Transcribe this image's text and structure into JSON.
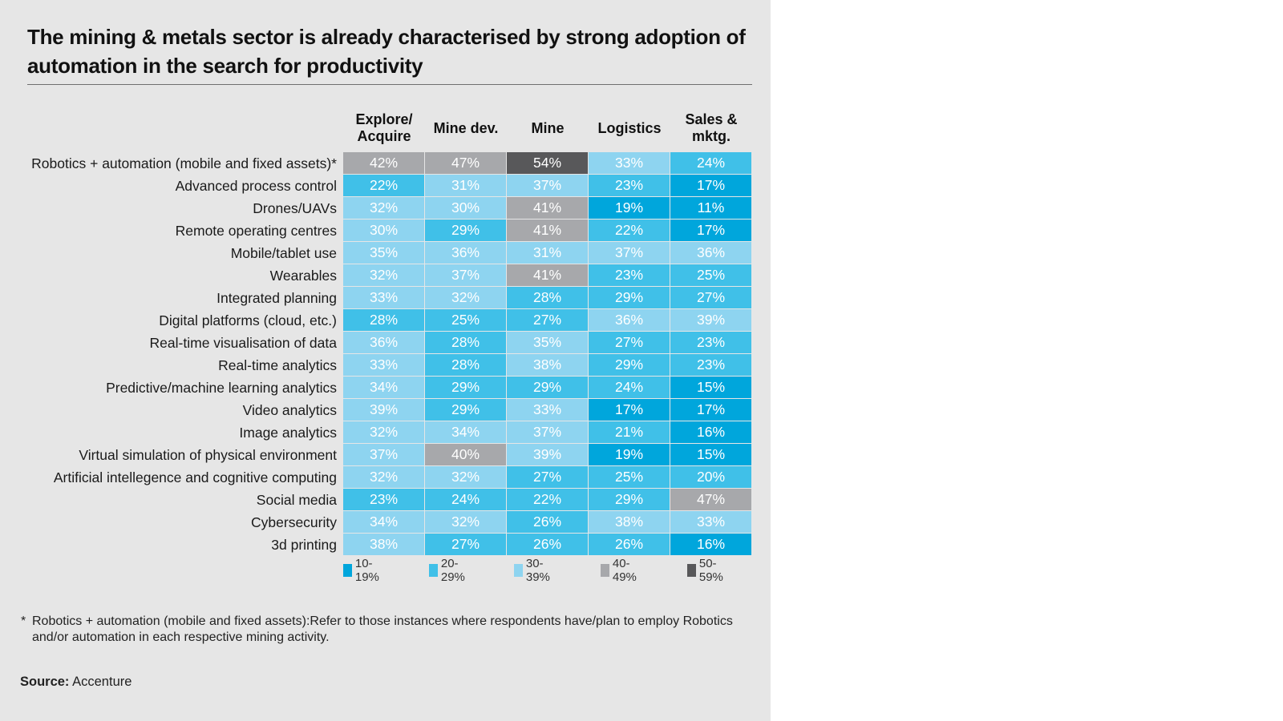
{
  "title": "The mining & metals sector is already characterised by strong adoption of automation in the search for productivity",
  "footnote": {
    "marker": "*",
    "text": "Robotics + automation (mobile and fixed assets):Refer to those instances where respondents have/plan to employ Robotics and/or automation in each respective mining activity."
  },
  "source": {
    "label": "Source:",
    "value": "Accenture"
  },
  "colors": {
    "background_panel": "#e6e6e6",
    "band_10_19": "#00a6dc",
    "band_20_29": "#40c0e8",
    "band_30_39": "#8ed4f0",
    "band_40_49": "#a7a8ab",
    "band_50_59": "#58585a"
  },
  "chart_data": {
    "type": "heatmap",
    "title": "The mining & metals sector is already characterised by strong adoption of automation in the search for productivity",
    "columns": [
      "Explore/\nAcquire",
      "Mine dev.",
      "Mine",
      "Logistics",
      "Sales &\nmktg."
    ],
    "rows": [
      "Robotics + automation (mobile and fixed assets)*",
      "Advanced process control",
      "Drones/UAVs",
      "Remote operating centres",
      "Mobile/tablet use",
      "Wearables",
      "Integrated planning",
      "Digital platforms (cloud, etc.)",
      "Real-time visualisation of data",
      "Real-time analytics",
      "Predictive/machine learning analytics",
      "Video analytics",
      "Image analytics",
      "Virtual simulation of physical environment",
      "Artificial intellegence and cognitive computing",
      "Social media",
      "Cybersecurity",
      "3d printing"
    ],
    "values": [
      [
        42,
        47,
        54,
        33,
        24
      ],
      [
        22,
        31,
        37,
        23,
        17
      ],
      [
        32,
        30,
        41,
        19,
        11
      ],
      [
        30,
        29,
        41,
        22,
        17
      ],
      [
        35,
        36,
        31,
        37,
        36
      ],
      [
        32,
        37,
        41,
        23,
        25
      ],
      [
        33,
        32,
        28,
        29,
        27
      ],
      [
        28,
        25,
        27,
        36,
        39
      ],
      [
        36,
        28,
        35,
        27,
        23
      ],
      [
        33,
        28,
        38,
        29,
        23
      ],
      [
        34,
        29,
        29,
        24,
        15
      ],
      [
        39,
        29,
        33,
        17,
        17
      ],
      [
        32,
        34,
        37,
        21,
        16
      ],
      [
        37,
        40,
        39,
        19,
        15
      ],
      [
        32,
        32,
        27,
        25,
        20
      ],
      [
        23,
        24,
        22,
        29,
        47
      ],
      [
        34,
        32,
        26,
        38,
        33
      ],
      [
        38,
        27,
        26,
        26,
        16
      ]
    ],
    "value_suffix": "%",
    "legend": {
      "placement": "bottom",
      "bands": [
        {
          "label": "10-19%",
          "min": 10,
          "max": 19,
          "color": "#00a6dc"
        },
        {
          "label": "20-29%",
          "min": 20,
          "max": 29,
          "color": "#40c0e8"
        },
        {
          "label": "30-39%",
          "min": 30,
          "max": 39,
          "color": "#8ed4f0"
        },
        {
          "label": "40-49%",
          "min": 40,
          "max": 49,
          "color": "#a7a8ab"
        },
        {
          "label": "50-59%",
          "min": 50,
          "max": 59,
          "color": "#58585a"
        }
      ]
    }
  }
}
